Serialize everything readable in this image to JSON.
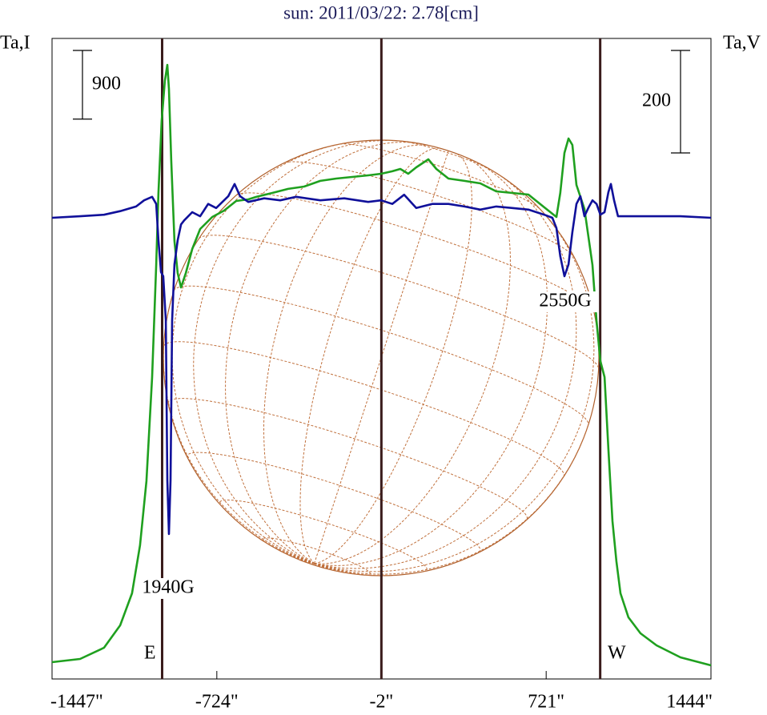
{
  "chart_data": {
    "type": "line",
    "title": "sun: 2011/03/22: 2.78[cm]",
    "ylabel": "Ta,I",
    "y2label": "Ta,V",
    "xlim": [
      -1447,
      1444
    ],
    "xticks": [
      {
        "value": -1447,
        "label": "-1447\""
      },
      {
        "value": -724,
        "label": "-724\""
      },
      {
        "value": -2,
        "label": "-2\""
      },
      {
        "value": 721,
        "label": "721\""
      },
      {
        "value": 1444,
        "label": "1444\""
      }
    ],
    "ylim": [
      -200,
      8200
    ],
    "y2lim": [
      -900,
      350
    ],
    "grid": false,
    "series": [
      {
        "color": "#1fa01f",
        "axis": "y",
        "x": [
          -1447,
          -1324,
          -1219,
          -1148,
          -1096,
          -1061,
          -1033,
          -1008,
          -990,
          -980,
          -966,
          -952,
          -941,
          -934,
          -924,
          -910,
          -896,
          -881,
          -860,
          -832,
          -797,
          -744,
          -692,
          -639,
          -586,
          -551,
          -481,
          -411,
          -341,
          -270,
          -200,
          -130,
          -60,
          -3,
          46,
          81,
          116,
          151,
          204,
          239,
          292,
          362,
          432,
          502,
          573,
          643,
          713,
          766,
          783,
          801,
          819,
          836,
          854,
          889,
          924,
          942,
          959,
          977,
          994,
          1012,
          1029,
          1047,
          1082,
          1135,
          1205,
          1310,
          1444
        ],
        "values": [
          21,
          63,
          210,
          504,
          924,
          1554,
          2394,
          3759,
          5229,
          6174,
          7119,
          7644,
          7854,
          7539,
          6594,
          5544,
          5124,
          4935,
          5124,
          5439,
          5701,
          5859,
          5943,
          6069,
          6090,
          6122,
          6174,
          6227,
          6258,
          6332,
          6363,
          6384,
          6405,
          6426,
          6458,
          6489,
          6426,
          6510,
          6615,
          6489,
          6363,
          6332,
          6300,
          6195,
          6174,
          6153,
          5985,
          5859,
          6174,
          6699,
          6888,
          6804,
          6279,
          5964,
          5229,
          4494,
          3969,
          3759,
          2814,
          1869,
          1344,
          924,
          609,
          399,
          241,
          84,
          -21
        ]
      },
      {
        "color": "#10109a",
        "axis": "y2",
        "x": [
          -1447,
          -1324,
          -1219,
          -1148,
          -1078,
          -1043,
          -1008,
          -990,
          -980,
          -969,
          -959,
          -948,
          -941,
          -934,
          -927,
          -920,
          -910,
          -896,
          -881,
          -867,
          -832,
          -797,
          -762,
          -727,
          -674,
          -646,
          -622,
          -586,
          -516,
          -446,
          -376,
          -270,
          -165,
          -60,
          -3,
          46,
          98,
          151,
          221,
          292,
          362,
          432,
          502,
          573,
          643,
          713,
          748,
          766,
          783,
          801,
          819,
          836,
          854,
          871,
          889,
          906,
          924,
          942,
          959,
          977,
          994,
          1005,
          1019,
          1036,
          1100,
          1205,
          1310,
          1444
        ],
        "values": [
          0,
          3,
          6,
          13,
          22,
          34,
          41,
          27,
          -44,
          -106,
          -114,
          -200,
          -513,
          -617,
          -513,
          -200,
          -91,
          -44,
          -13,
          -5,
          11,
          3,
          27,
          19,
          42,
          66,
          42,
          31,
          38,
          34,
          41,
          34,
          38,
          31,
          34,
          27,
          45,
          19,
          27,
          27,
          22,
          16,
          22,
          19,
          16,
          6,
          0,
          -20,
          -75,
          -114,
          -91,
          -28,
          27,
          42,
          3,
          19,
          34,
          27,
          6,
          11,
          50,
          66,
          34,
          3,
          3,
          3,
          3,
          0
        ]
      }
    ],
    "vlines": [
      {
        "x": -964,
        "label": "E"
      },
      {
        "x": -2
      },
      {
        "x": 958,
        "label": "W"
      }
    ],
    "vline_color": "#3a1c1c",
    "scale_bars": [
      {
        "axis": "y",
        "value": 900
      },
      {
        "axis": "y2",
        "value": 200
      }
    ],
    "annotations": [
      "1940G",
      "2550G"
    ]
  }
}
